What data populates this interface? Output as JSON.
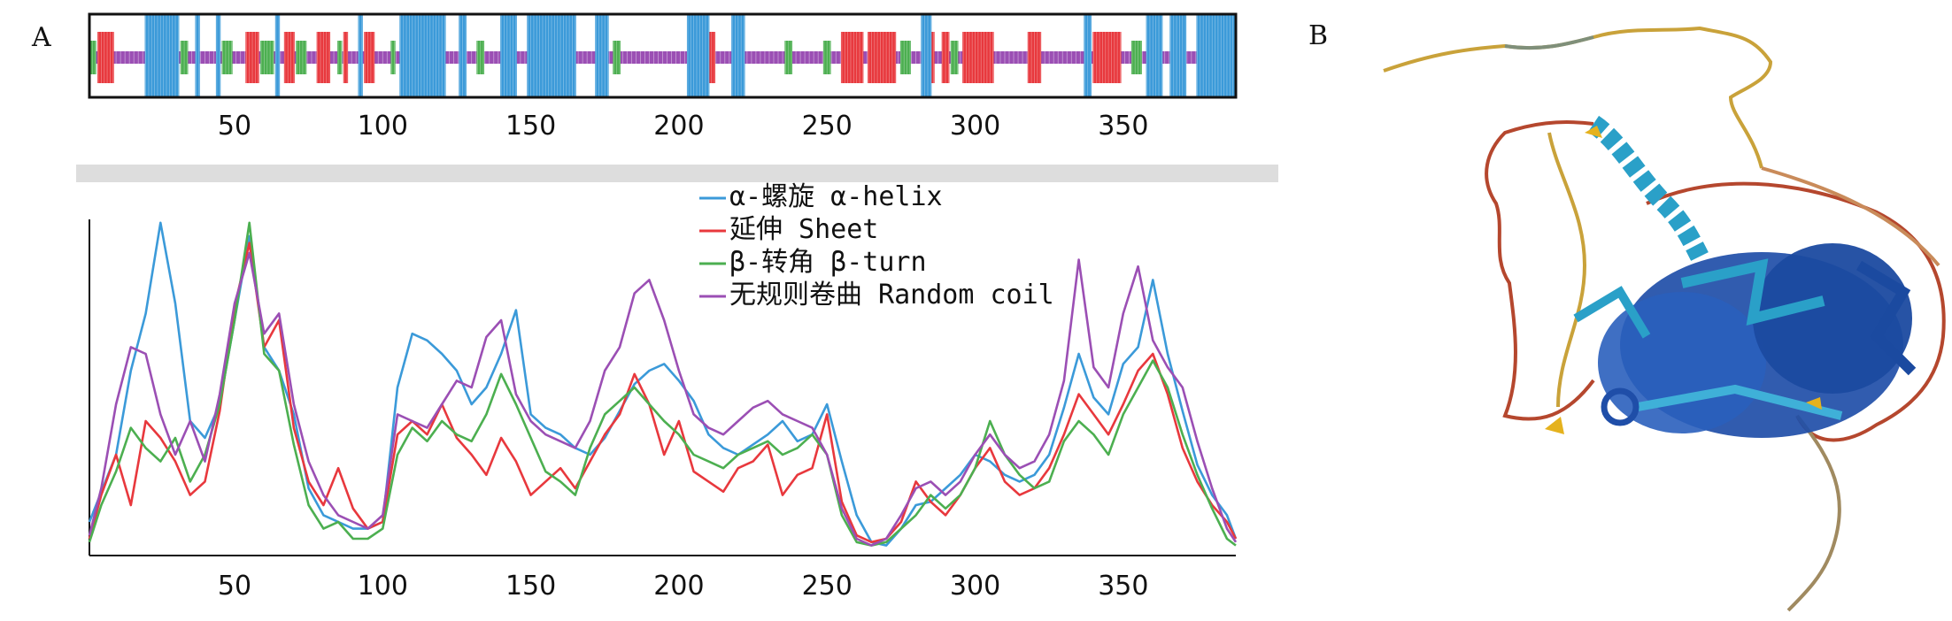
{
  "panel_labels": {
    "a": "A",
    "b": "B"
  },
  "colors": {
    "helix": "#3b9ad9",
    "sheet": "#e8383d",
    "turn": "#4caf50",
    "coil": "#9b4fb4",
    "divider": "#dddddd",
    "protein_core": "#1f4ea8",
    "protein_helix": "#2aa0c8",
    "protein_loop_red": "#b5472e",
    "protein_loop_yellow": "#c9a23a"
  },
  "chart_data": [
    {
      "type": "track",
      "title": "",
      "xlabel": "",
      "ylabel": "",
      "xlim": [
        1,
        388
      ],
      "xticks": [
        50,
        100,
        150,
        200,
        250,
        300,
        350
      ],
      "helix_segments": [
        [
          20,
          31
        ],
        [
          37,
          38
        ],
        [
          44,
          45
        ],
        [
          64,
          65
        ],
        [
          92,
          93
        ],
        [
          106,
          121
        ],
        [
          126,
          128
        ],
        [
          140,
          145
        ],
        [
          149,
          165
        ],
        [
          172,
          176
        ],
        [
          203,
          210
        ],
        [
          218,
          222
        ],
        [
          282,
          285
        ],
        [
          337,
          339
        ],
        [
          358,
          363
        ],
        [
          366,
          371
        ],
        [
          375,
          388
        ]
      ],
      "sheet_segments": [
        [
          4,
          9
        ],
        [
          54,
          58
        ],
        [
          67,
          70
        ],
        [
          78,
          82
        ],
        [
          87,
          88
        ],
        [
          94,
          97
        ],
        [
          210,
          212
        ],
        [
          255,
          262
        ],
        [
          264,
          273
        ],
        [
          283,
          286
        ],
        [
          289,
          291
        ],
        [
          296,
          306
        ],
        [
          318,
          322
        ],
        [
          340,
          349
        ]
      ],
      "turn_segments": [
        [
          1,
          3
        ],
        [
          32,
          34
        ],
        [
          46,
          49
        ],
        [
          59,
          63
        ],
        [
          71,
          74
        ],
        [
          85,
          86
        ],
        [
          103,
          104
        ],
        [
          132,
          134
        ],
        [
          178,
          180
        ],
        [
          236,
          238
        ],
        [
          249,
          251
        ],
        [
          275,
          278
        ],
        [
          292,
          294
        ],
        [
          353,
          356
        ]
      ]
    },
    {
      "type": "line",
      "title": "",
      "xlabel": "",
      "ylabel": "",
      "xlim": [
        1,
        388
      ],
      "ylim": [
        0,
        1
      ],
      "xticks": [
        50,
        100,
        150,
        200,
        250,
        300,
        350
      ],
      "legend_position": "top-right",
      "series": [
        {
          "name": "α-螺旋 α-helix",
          "color": "#3b9ad9",
          "x": [
            1,
            10,
            15,
            20,
            25,
            30,
            35,
            40,
            45,
            50,
            55,
            60,
            65,
            70,
            75,
            80,
            85,
            90,
            95,
            100,
            105,
            110,
            115,
            120,
            125,
            130,
            135,
            140,
            145,
            150,
            155,
            160,
            165,
            170,
            175,
            180,
            185,
            190,
            195,
            200,
            205,
            210,
            215,
            220,
            225,
            230,
            235,
            240,
            245,
            250,
            255,
            260,
            265,
            270,
            275,
            280,
            285,
            290,
            295,
            300,
            305,
            310,
            315,
            320,
            325,
            330,
            335,
            340,
            345,
            350,
            355,
            360,
            365,
            370,
            375,
            380,
            385,
            388
          ],
          "y": [
            0.1,
            0.3,
            0.55,
            0.72,
            0.99,
            0.75,
            0.4,
            0.35,
            0.45,
            0.7,
            0.95,
            0.62,
            0.55,
            0.42,
            0.2,
            0.12,
            0.1,
            0.08,
            0.08,
            0.1,
            0.5,
            0.66,
            0.64,
            0.6,
            0.55,
            0.45,
            0.5,
            0.6,
            0.73,
            0.42,
            0.38,
            0.36,
            0.32,
            0.3,
            0.35,
            0.43,
            0.51,
            0.55,
            0.57,
            0.52,
            0.46,
            0.36,
            0.32,
            0.3,
            0.33,
            0.36,
            0.4,
            0.34,
            0.36,
            0.45,
            0.28,
            0.12,
            0.04,
            0.03,
            0.08,
            0.15,
            0.16,
            0.2,
            0.24,
            0.3,
            0.28,
            0.24,
            0.22,
            0.24,
            0.3,
            0.44,
            0.6,
            0.47,
            0.42,
            0.57,
            0.62,
            0.82,
            0.6,
            0.43,
            0.27,
            0.18,
            0.12,
            0.05
          ]
        },
        {
          "name": "延伸 Sheet",
          "color": "#e8383d",
          "x": [
            1,
            5,
            10,
            15,
            20,
            25,
            30,
            35,
            40,
            45,
            50,
            55,
            60,
            65,
            70,
            75,
            80,
            85,
            90,
            95,
            100,
            105,
            110,
            115,
            120,
            125,
            130,
            135,
            140,
            145,
            150,
            155,
            160,
            165,
            170,
            175,
            180,
            185,
            190,
            195,
            200,
            205,
            210,
            215,
            220,
            225,
            230,
            235,
            240,
            245,
            250,
            255,
            260,
            265,
            270,
            275,
            280,
            285,
            290,
            295,
            300,
            305,
            310,
            315,
            320,
            325,
            330,
            335,
            340,
            345,
            350,
            355,
            360,
            365,
            370,
            375,
            380,
            385,
            388
          ],
          "y": [
            0.05,
            0.18,
            0.3,
            0.15,
            0.4,
            0.35,
            0.28,
            0.18,
            0.22,
            0.43,
            0.74,
            0.93,
            0.62,
            0.7,
            0.38,
            0.22,
            0.15,
            0.26,
            0.14,
            0.08,
            0.1,
            0.36,
            0.4,
            0.36,
            0.45,
            0.35,
            0.3,
            0.24,
            0.35,
            0.28,
            0.18,
            0.22,
            0.26,
            0.2,
            0.28,
            0.36,
            0.42,
            0.54,
            0.45,
            0.3,
            0.4,
            0.25,
            0.22,
            0.19,
            0.26,
            0.28,
            0.33,
            0.18,
            0.24,
            0.26,
            0.42,
            0.16,
            0.06,
            0.04,
            0.05,
            0.1,
            0.22,
            0.16,
            0.12,
            0.18,
            0.26,
            0.32,
            0.22,
            0.18,
            0.2,
            0.26,
            0.36,
            0.48,
            0.42,
            0.36,
            0.45,
            0.55,
            0.6,
            0.48,
            0.32,
            0.22,
            0.15,
            0.1,
            0.05
          ]
        },
        {
          "name": "β-转角 β-turn",
          "color": "#4caf50",
          "x": [
            1,
            5,
            10,
            15,
            20,
            25,
            30,
            35,
            40,
            45,
            50,
            55,
            60,
            65,
            70,
            75,
            80,
            85,
            90,
            95,
            100,
            105,
            110,
            115,
            120,
            125,
            130,
            135,
            140,
            145,
            150,
            155,
            160,
            165,
            170,
            175,
            180,
            185,
            190,
            195,
            200,
            205,
            210,
            215,
            220,
            225,
            230,
            235,
            240,
            245,
            250,
            255,
            260,
            265,
            270,
            275,
            280,
            285,
            290,
            295,
            300,
            305,
            310,
            315,
            320,
            325,
            330,
            335,
            340,
            345,
            350,
            355,
            360,
            365,
            370,
            375,
            380,
            385,
            388
          ],
          "y": [
            0.04,
            0.15,
            0.25,
            0.38,
            0.32,
            0.28,
            0.35,
            0.22,
            0.3,
            0.45,
            0.7,
            0.99,
            0.6,
            0.55,
            0.33,
            0.15,
            0.08,
            0.1,
            0.05,
            0.05,
            0.08,
            0.3,
            0.38,
            0.34,
            0.4,
            0.36,
            0.34,
            0.42,
            0.54,
            0.45,
            0.35,
            0.25,
            0.22,
            0.18,
            0.32,
            0.42,
            0.46,
            0.5,
            0.45,
            0.4,
            0.36,
            0.3,
            0.28,
            0.26,
            0.3,
            0.32,
            0.34,
            0.3,
            0.32,
            0.36,
            0.3,
            0.12,
            0.04,
            0.03,
            0.04,
            0.08,
            0.12,
            0.18,
            0.14,
            0.18,
            0.26,
            0.4,
            0.3,
            0.24,
            0.2,
            0.22,
            0.34,
            0.4,
            0.36,
            0.3,
            0.42,
            0.5,
            0.58,
            0.5,
            0.36,
            0.24,
            0.14,
            0.05,
            0.03
          ]
        },
        {
          "name": "无规则卷曲 Random coil",
          "color": "#9b4fb4",
          "x": [
            1,
            5,
            10,
            15,
            20,
            25,
            30,
            35,
            40,
            45,
            50,
            55,
            60,
            65,
            70,
            75,
            80,
            85,
            90,
            95,
            100,
            105,
            110,
            115,
            120,
            125,
            130,
            135,
            140,
            145,
            150,
            155,
            160,
            165,
            170,
            175,
            180,
            185,
            190,
            195,
            200,
            205,
            210,
            215,
            220,
            225,
            230,
            235,
            240,
            245,
            250,
            255,
            260,
            265,
            270,
            275,
            280,
            285,
            290,
            295,
            300,
            305,
            310,
            315,
            320,
            325,
            330,
            335,
            340,
            345,
            350,
            355,
            360,
            365,
            370,
            375,
            380,
            385,
            388
          ],
          "y": [
            0.06,
            0.2,
            0.45,
            0.62,
            0.6,
            0.42,
            0.3,
            0.4,
            0.28,
            0.48,
            0.75,
            0.9,
            0.66,
            0.72,
            0.45,
            0.28,
            0.18,
            0.12,
            0.1,
            0.08,
            0.12,
            0.42,
            0.4,
            0.38,
            0.45,
            0.52,
            0.5,
            0.65,
            0.7,
            0.48,
            0.4,
            0.36,
            0.34,
            0.32,
            0.4,
            0.55,
            0.62,
            0.78,
            0.82,
            0.7,
            0.55,
            0.42,
            0.38,
            0.36,
            0.4,
            0.44,
            0.46,
            0.42,
            0.4,
            0.38,
            0.3,
            0.14,
            0.05,
            0.03,
            0.05,
            0.12,
            0.2,
            0.22,
            0.18,
            0.22,
            0.3,
            0.36,
            0.3,
            0.26,
            0.28,
            0.36,
            0.52,
            0.88,
            0.56,
            0.5,
            0.72,
            0.86,
            0.64,
            0.56,
            0.5,
            0.34,
            0.2,
            0.08,
            0.04
          ]
        }
      ]
    }
  ]
}
